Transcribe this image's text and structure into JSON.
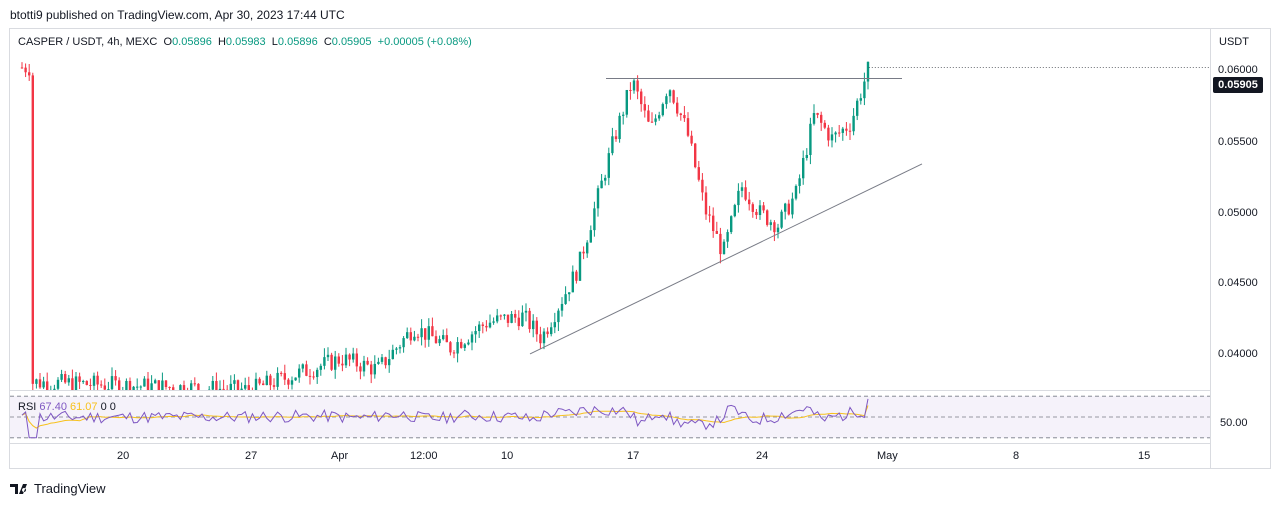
{
  "header": {
    "published": "btotti9 published on TradingView.com, Apr 30, 2023 17:44 UTC"
  },
  "legend": {
    "symbol": "CASPER / USDT, 4h, MEXC",
    "o_label": "O",
    "o": "0.05896",
    "h_label": "H",
    "h": "0.05983",
    "l_label": "L",
    "l": "0.05896",
    "c_label": "C",
    "c": "0.05905",
    "change": "+0.00005 (+0.08%)"
  },
  "rsi_legend": {
    "name": "RSI",
    "value": "67.40",
    "ma": "61.07",
    "extra": "0 0"
  },
  "axis": {
    "currency": "USDT",
    "price_ticks": [
      "0.06000",
      "0.05500",
      "0.05000",
      "0.04500",
      "0.04000"
    ],
    "last_price": "0.05905",
    "rsi_tick": "50.00",
    "time_ticks": [
      "20",
      "27",
      "Apr",
      "12:00",
      "10",
      "17",
      "24",
      "May",
      "8",
      "15"
    ]
  },
  "footer": {
    "brand": "TradingView"
  },
  "colors": {
    "up": "#089981",
    "down": "#f23645",
    "rsi": "#7e57c2",
    "rsi_ma": "#f7c11c",
    "trendline": "#787b86"
  },
  "chart_data": {
    "type": "candlestick",
    "symbol": "CASPER / USDT",
    "interval": "4h",
    "ylim": [
      0.0385,
      0.0615
    ],
    "price_path": [
      {
        "x": "Mar 15",
        "y": 0.039
      },
      {
        "x": "Mar 20",
        "y": 0.0388
      },
      {
        "x": "Mar 27",
        "y": 0.0385
      },
      {
        "x": "Apr 1",
        "y": 0.0405
      },
      {
        "x": "Apr 3",
        "y": 0.0398
      },
      {
        "x": "Apr 5",
        "y": 0.0425
      },
      {
        "x": "Apr 7",
        "y": 0.0412
      },
      {
        "x": "Apr 9",
        "y": 0.0428
      },
      {
        "x": "Apr 11",
        "y": 0.0432
      },
      {
        "x": "Apr 12",
        "y": 0.0418
      },
      {
        "x": "Apr 14",
        "y": 0.0462
      },
      {
        "x": "Apr 16",
        "y": 0.0545
      },
      {
        "x": "Apr 17",
        "y": 0.0582
      },
      {
        "x": "Apr 18",
        "y": 0.055
      },
      {
        "x": "Apr 19",
        "y": 0.058
      },
      {
        "x": "Apr 20",
        "y": 0.055
      },
      {
        "x": "Apr 21",
        "y": 0.05
      },
      {
        "x": "Apr 22",
        "y": 0.0472
      },
      {
        "x": "Apr 23",
        "y": 0.0515
      },
      {
        "x": "Apr 24",
        "y": 0.0498
      },
      {
        "x": "Apr 25",
        "y": 0.049
      },
      {
        "x": "Apr 26",
        "y": 0.051
      },
      {
        "x": "Apr 27",
        "y": 0.056
      },
      {
        "x": "Apr 28",
        "y": 0.0545
      },
      {
        "x": "Apr 29",
        "y": 0.0555
      },
      {
        "x": "Apr 30",
        "y": 0.05905
      }
    ],
    "rsi": {
      "value": 67.4,
      "ma": 61.07,
      "levels": [
        70,
        50,
        30
      ]
    }
  }
}
